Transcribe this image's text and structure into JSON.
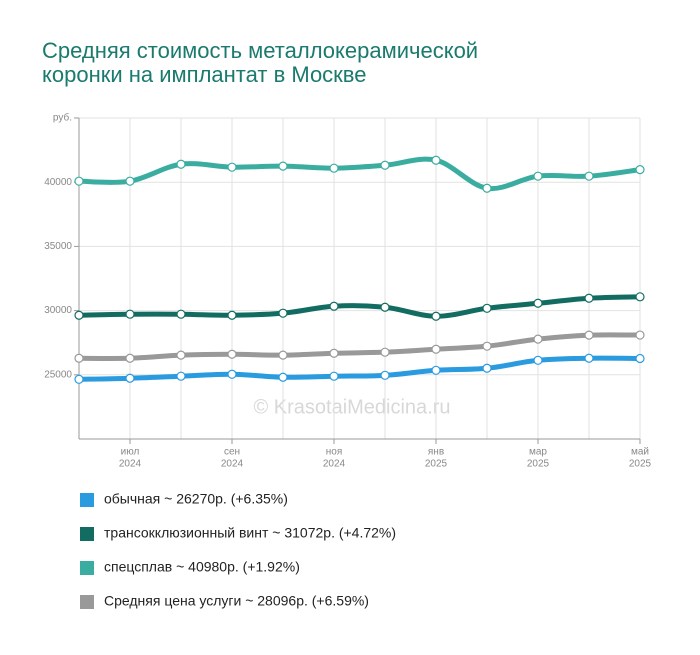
{
  "chart_data": {
    "type": "line",
    "title": [
      "Средняя стоимость металлокерамической",
      "коронки на имплантат в Москве"
    ],
    "watermark": "© KrasotaiMedicina.ru",
    "categories": [
      null,
      [
        "июл",
        "2024"
      ],
      null,
      [
        "сен",
        "2024"
      ],
      null,
      [
        "ноя",
        "2024"
      ],
      null,
      [
        "янв",
        "2025"
      ],
      null,
      [
        "мар",
        "2025"
      ],
      null,
      [
        "май",
        "2025"
      ]
    ],
    "ylim": [
      20000,
      45000
    ],
    "yticks": [
      25000,
      30000,
      35000,
      40000,
      {
        "value": 45000,
        "label": "руб."
      }
    ],
    "grid": true,
    "series": [
      {
        "name": "обычная ~ 26270р. (+6.35%)",
        "color": "#2b9be0",
        "values": [
          24650,
          24730,
          24890,
          25040,
          24810,
          24890,
          24960,
          25350,
          25510,
          26130,
          26290,
          26270
        ]
      },
      {
        "name": "трансокклюзионный винт ~ 31072р. (+4.72%)",
        "color": "#136c62",
        "values": [
          29640,
          29720,
          29720,
          29640,
          29800,
          30340,
          30260,
          29560,
          30180,
          30570,
          30960,
          31072
        ]
      },
      {
        "name": "спецсплав ~ 40980р. (+1.92%)",
        "color": "#3aada0",
        "values": [
          40080,
          40080,
          41400,
          41170,
          41250,
          41090,
          41320,
          41710,
          39530,
          40470,
          40470,
          40980
        ]
      },
      {
        "name": "Средняя цена услуги ~ 28096р. (+6.59%)",
        "color": "#999999",
        "values": [
          26290,
          26290,
          26530,
          26600,
          26530,
          26680,
          26760,
          26990,
          27230,
          27780,
          28090,
          28096
        ]
      }
    ]
  }
}
